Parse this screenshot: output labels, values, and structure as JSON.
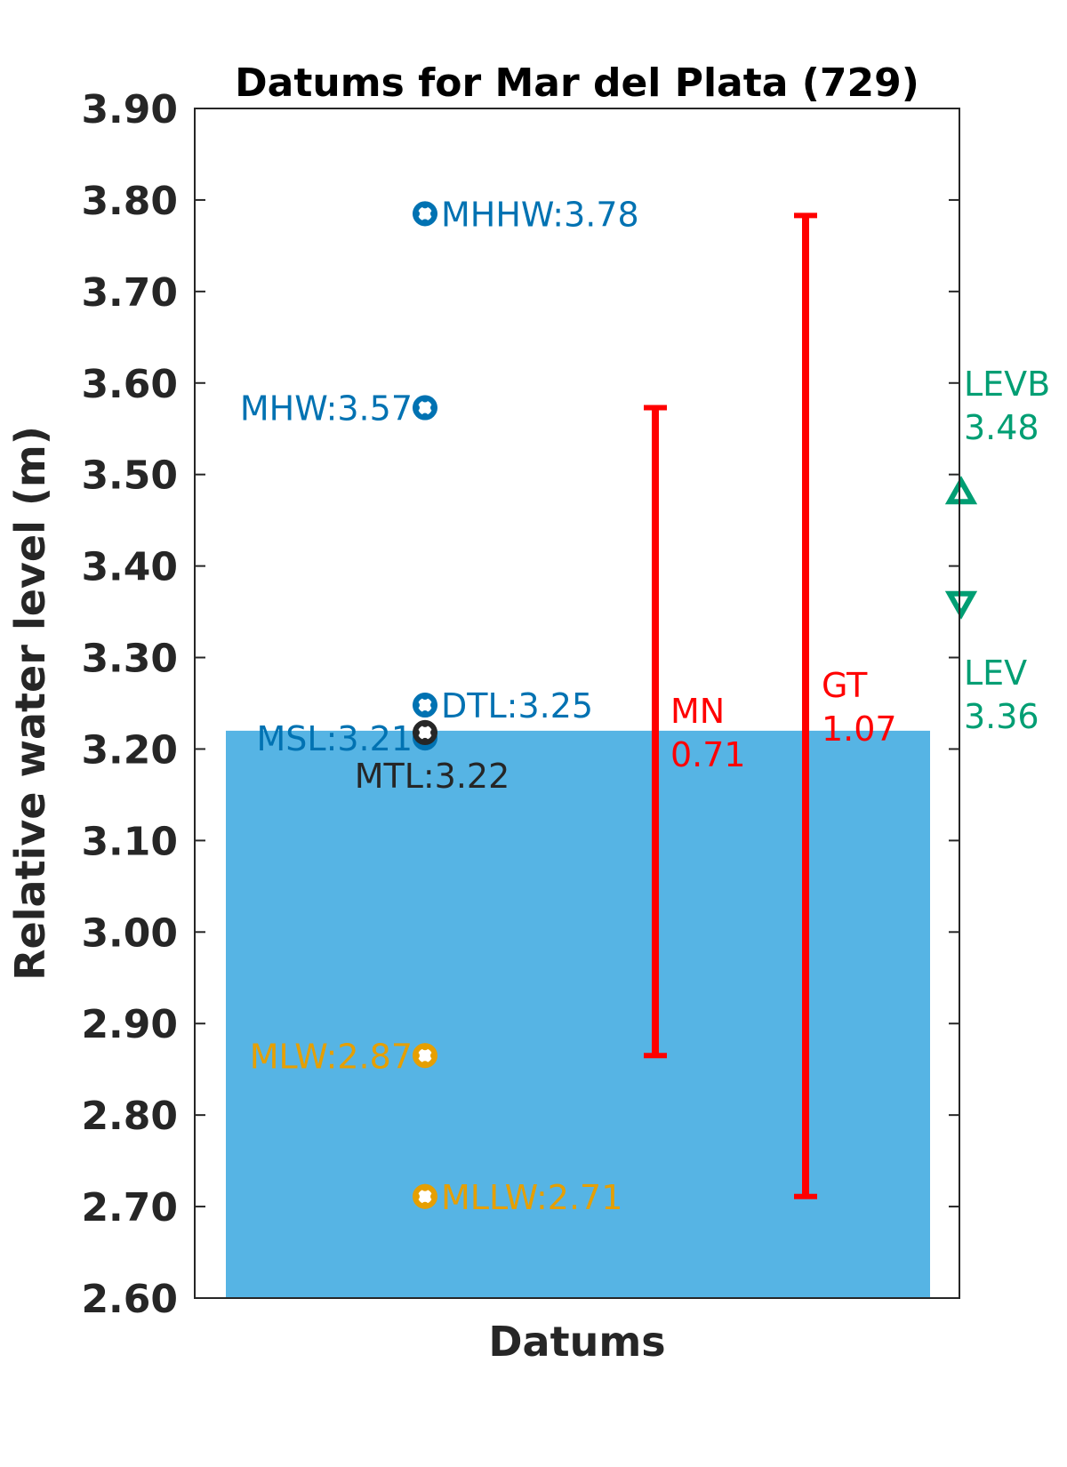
{
  "chart_data": {
    "type": "bar",
    "title": "Datums for Mar del Plata (729)",
    "xlabel": "Datums",
    "ylabel": "Relative water level (m)",
    "ylim": [
      2.6,
      3.9
    ],
    "yticks": [
      "2.60",
      "2.70",
      "2.80",
      "2.90",
      "3.00",
      "3.10",
      "3.20",
      "3.30",
      "3.40",
      "3.50",
      "3.60",
      "3.70",
      "3.80",
      "3.90"
    ],
    "grid": false,
    "bar": {
      "value": 3.22,
      "color": "#56b4e4"
    },
    "points": [
      {
        "label": "MHHW:3.78",
        "value": 3.785,
        "color": "#0072b2",
        "label_side": "right"
      },
      {
        "label": "MHW:3.57",
        "value": 3.573,
        "color": "#0072b2",
        "label_side": "left"
      },
      {
        "label": "DTL:3.25",
        "value": 3.248,
        "color": "#0072b2",
        "label_side": "right"
      },
      {
        "label": "MSL:3.21",
        "value": 3.212,
        "color": "#0072b2",
        "label_side": "left"
      },
      {
        "label": "MTL:3.22",
        "value": 3.218,
        "color": "#262626",
        "label_side": "below"
      },
      {
        "label": "MLW:2.87",
        "value": 2.865,
        "color": "#e69f00",
        "label_side": "left"
      },
      {
        "label": "MLLW:2.71",
        "value": 2.711,
        "color": "#e69f00",
        "label_side": "right"
      }
    ],
    "ranges": [
      {
        "name": "MN",
        "value_text": "0.71",
        "low": 2.865,
        "high": 3.573,
        "color": "#ff0000"
      },
      {
        "name": "GT",
        "value_text": "1.07",
        "low": 2.711,
        "high": 3.783,
        "color": "#ff0000"
      }
    ],
    "extremes": [
      {
        "name": "LEVB",
        "value_text": "3.48",
        "value": 3.48,
        "marker": "triangle-up",
        "color": "#009e73"
      },
      {
        "name": "LEV",
        "value_text": "3.36",
        "value": 3.36,
        "marker": "triangle-down",
        "color": "#009e73"
      }
    ]
  }
}
